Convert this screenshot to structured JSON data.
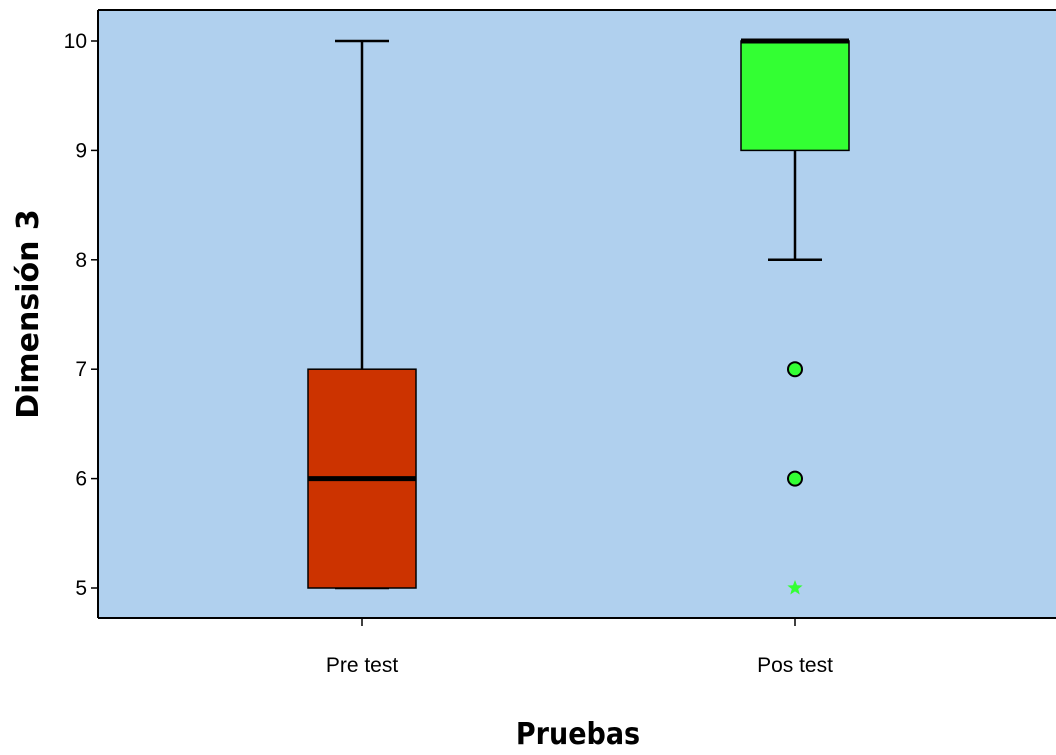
{
  "chart_data": {
    "type": "boxplot",
    "xlabel": "Pruebas",
    "ylabel": "Dimensión 3",
    "ylim": [
      4.75,
      10.3
    ],
    "yticks": [
      5,
      6,
      7,
      8,
      9,
      10
    ],
    "categories": [
      "Pre test",
      "Pos test"
    ],
    "boxes": [
      {
        "category": "Pre test",
        "whisker_low": 5,
        "q1": 5,
        "median": 6,
        "q3": 7,
        "whisker_high": 10,
        "color": "#CC3300",
        "outliers": [],
        "extremes": []
      },
      {
        "category": "Pos test",
        "whisker_low": 8,
        "q1": 9,
        "median": 10,
        "q3": 10,
        "whisker_high": 10,
        "color": "#33FF33",
        "outliers": [
          7,
          6
        ],
        "extremes": [
          5
        ]
      }
    ],
    "background_color": "#B0D0EE",
    "grid": false
  }
}
